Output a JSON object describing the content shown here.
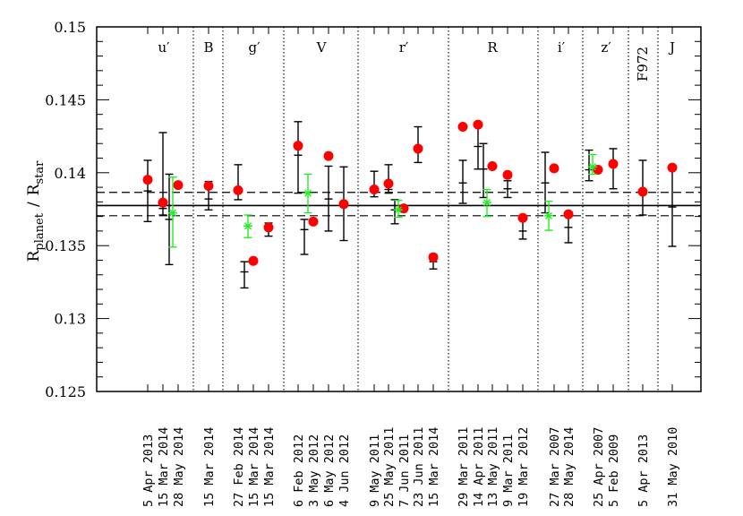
{
  "chart_data": {
    "type": "scatter",
    "title": "",
    "xlabel": "",
    "ylabel": {
      "main_a": "R",
      "sub_a": "planet",
      "separator": "/",
      "main_b": "R",
      "sub_b": "star"
    },
    "ylim": [
      0.125,
      0.15
    ],
    "yticks": [
      "0.125",
      "0.13",
      "0.135",
      "0.14",
      "0.145",
      "0.15"
    ],
    "reference_lines": {
      "mean": 0.13775,
      "upper": 0.13865,
      "lower": 0.13705
    },
    "colors": {
      "red": "#ff0000",
      "green": "#22ee22",
      "black": "#000000"
    },
    "bands": [
      {
        "name": "u′",
        "points": [
          {
            "date": "5 Apr 2013",
            "red": 0.13952,
            "black": [
              0.13875,
              0.13665,
              0.14085
            ],
            "green": null
          },
          {
            "date": "15 Mar 2014",
            "red": 0.13795,
            "black": [
              0.13755,
              0.1371,
              0.14275
            ],
            "green": null
          },
          {
            "date": "28 May 2014",
            "red": 0.13915,
            "black": [
              0.1368,
              0.1337,
              0.1399
            ],
            "green": [
              0.13725,
              0.1349,
              0.1397
            ]
          }
        ]
      },
      {
        "name": "B",
        "points": [
          {
            "date": "15 Mar 2014",
            "red": 0.1391,
            "black": [
              0.1382,
              0.13745,
              0.1394
            ],
            "green": null
          }
        ]
      },
      {
        "name": "g′",
        "points": [
          {
            "date": "27 Feb 2014",
            "red": 0.1388,
            "black": [
              0.1389,
              0.13815,
              0.14055
            ],
            "green": null
          },
          {
            "date": "15 Mar 2014",
            "red": 0.13395,
            "black": [
              0.1332,
              0.1321,
              0.1339
            ],
            "green": [
              0.13635,
              0.13555,
              0.1371
            ]
          },
          {
            "date": "15 Mar 2014",
            "red": 0.13625,
            "black": [
              0.13625,
              0.13565,
              0.13655
            ],
            "green": null
          }
        ]
      },
      {
        "name": "V",
        "points": [
          {
            "date": "6 Feb 2012",
            "red": 0.14185,
            "black": [
              0.1412,
              0.1386,
              0.1435
            ],
            "green": null
          },
          {
            "date": "3 May 2012",
            "red": 0.13665,
            "black": [
              0.1361,
              0.1344,
              0.1368
            ],
            "green": [
              0.1386,
              0.13725,
              0.1399
            ]
          },
          {
            "date": "6 May 2012",
            "red": 0.14115,
            "black": [
              0.1382,
              0.136,
              0.14045
            ],
            "green": null
          },
          {
            "date": "4 Jun 2012",
            "red": 0.13785,
            "black": [
              0.13785,
              0.13535,
              0.1404
            ],
            "green": null
          }
        ]
      },
      {
        "name": "r′",
        "points": [
          {
            "date": "9 May 2011",
            "red": 0.13885,
            "black": [
              0.13885,
              0.13835,
              0.1401
            ],
            "green": null
          },
          {
            "date": "25 May 2011",
            "red": 0.13925,
            "black": [
              0.13885,
              0.1386,
              0.14055
            ],
            "green": null
          },
          {
            "date": "7 Jun 2011",
            "red": 0.13755,
            "black": [
              0.13745,
              0.1365,
              0.13815
            ],
            "green": [
              0.13745,
              0.13695,
              0.1381
            ]
          },
          {
            "date": "23 Jun 2011",
            "red": 0.14165,
            "black": [
              0.1415,
              0.1407,
              0.14315
            ],
            "green": null
          },
          {
            "date": "15 Mar 2014",
            "red": 0.1342,
            "black": [
              0.1339,
              0.1334,
              0.1344
            ],
            "green": null
          }
        ]
      },
      {
        "name": "R",
        "points": [
          {
            "date": "29 Mar 2011",
            "red": 0.14315,
            "black": [
              0.1393,
              0.1379,
              0.14085
            ],
            "green": null
          },
          {
            "date": "14 Apr 2011",
            "red": 0.1433,
            "black": [
              0.1418,
              0.14025,
              0.14345
            ],
            "green": null
          },
          {
            "date": "13 May 2011",
            "red": 0.14045,
            "black": [
              0.14025,
              0.1383,
              0.142
            ],
            "green": [
              0.13795,
              0.137,
              0.13885
            ]
          },
          {
            "date": "9 Mar 2011",
            "red": 0.13985,
            "black": [
              0.1389,
              0.1383,
              0.13945
            ],
            "green": null
          },
          {
            "date": "19 Mar 2012",
            "red": 0.1369,
            "black": [
              0.136,
              0.13545,
              0.137
            ],
            "green": null
          }
        ]
      },
      {
        "name": "i′",
        "points": [
          {
            "date": "27 Mar 2007",
            "red": 0.1403,
            "black": [
              0.1393,
              0.13725,
              0.1414
            ],
            "green": [
              0.13705,
              0.13605,
              0.13805
            ]
          },
          {
            "date": "28 May 2014",
            "red": 0.13715,
            "black": [
              0.13625,
              0.1352,
              0.1373
            ],
            "green": null
          }
        ]
      },
      {
        "name": "z′",
        "points": [
          {
            "date": "25 Apr 2007",
            "red": 0.1402,
            "black": [
              0.1402,
              0.13945,
              0.14155
            ],
            "green": [
              0.1404,
              0.1399,
              0.14125
            ]
          },
          {
            "date": "5 Feb 2009",
            "red": 0.1406,
            "black": [
              0.14045,
              0.1389,
              0.14165
            ],
            "green": null
          }
        ]
      },
      {
        "name": "F972",
        "points": [
          {
            "date": "5 Apr 2013",
            "red": 0.1387,
            "black": [
              0.1387,
              0.1371,
              0.14085
            ],
            "green": null
          }
        ]
      },
      {
        "name": "J",
        "points": [
          {
            "date": "31 May 2010",
            "red": 0.14035,
            "black": [
              0.13765,
              0.13495,
              0.14035
            ],
            "green": null
          }
        ]
      }
    ]
  }
}
